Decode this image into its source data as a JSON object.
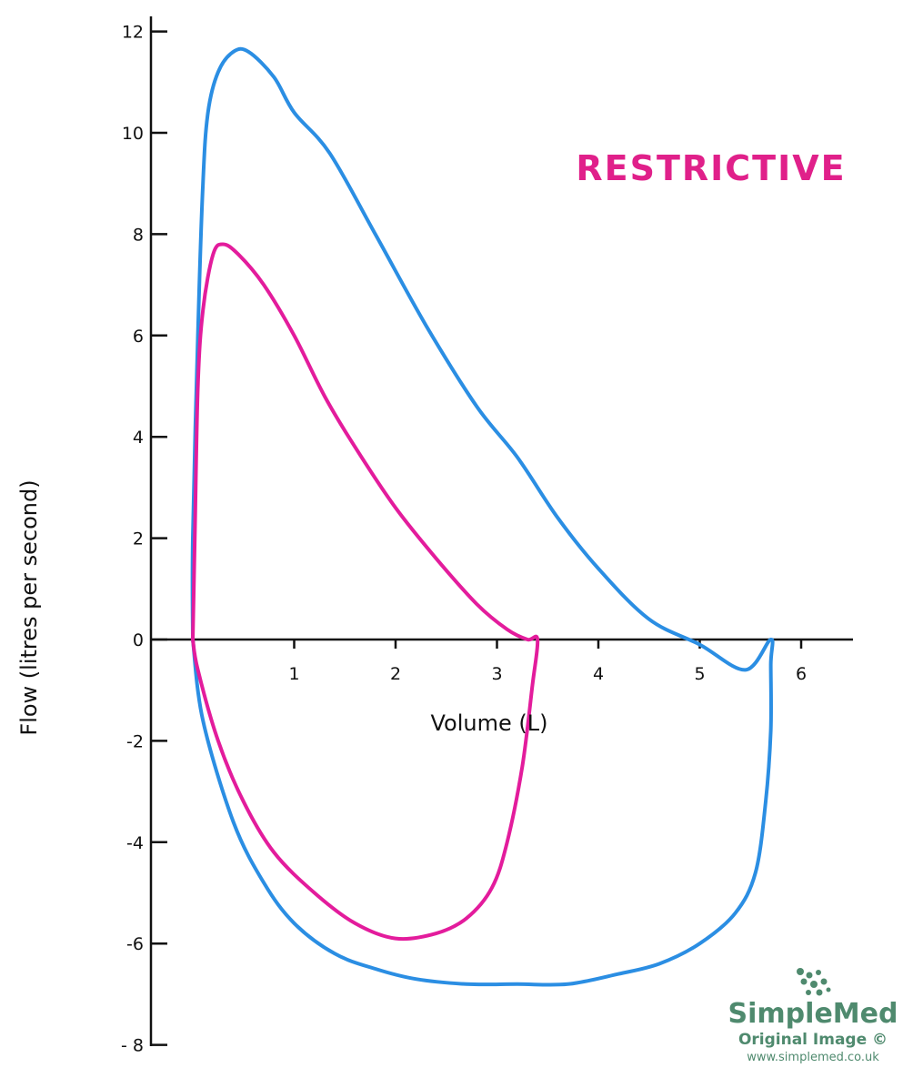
{
  "chart_data": {
    "type": "line",
    "annotation": "RESTRICTIVE",
    "xlabel": "Volume (L)",
    "ylabel": "Flow (litres per second)",
    "xlim": [
      0,
      6.5
    ],
    "ylim": [
      -8,
      12
    ],
    "x_ticks": [
      "1",
      "2",
      "3",
      "4",
      "5",
      "6"
    ],
    "y_ticks": [
      "12",
      "10",
      "8",
      "6",
      "4",
      "2",
      "0",
      "-2",
      "-4",
      "-6",
      "- 8"
    ],
    "x_tick_values": [
      1,
      2,
      3,
      4,
      5,
      6
    ],
    "y_tick_values": [
      12,
      10,
      8,
      6,
      4,
      2,
      0,
      -2,
      -4,
      -6,
      -8
    ],
    "grid": false,
    "series": [
      {
        "color": "#2b8ee3",
        "x": [
          0.0,
          0.0,
          0.05,
          0.1,
          0.15,
          0.25,
          0.4,
          0.55,
          0.8,
          1.0,
          1.35,
          1.8,
          2.3,
          2.8,
          3.2,
          3.6,
          4.0,
          4.5,
          5.0,
          5.45,
          5.7,
          5.7,
          5.7,
          5.65,
          5.55,
          5.35,
          5.0,
          4.6,
          4.2,
          3.7,
          3.2,
          2.7,
          2.2,
          1.8,
          1.4,
          1.0,
          0.7,
          0.4,
          0.1,
          0.0
        ],
        "y": [
          0.0,
          2.0,
          6.0,
          9.0,
          10.4,
          11.2,
          11.6,
          11.6,
          11.1,
          10.4,
          9.6,
          8.0,
          6.2,
          4.6,
          3.6,
          2.4,
          1.4,
          0.4,
          -0.1,
          -0.6,
          0.0,
          -0.5,
          -1.8,
          -3.2,
          -4.6,
          -5.4,
          -6.0,
          -6.4,
          -6.6,
          -6.8,
          -6.8,
          -6.8,
          -6.7,
          -6.5,
          -6.2,
          -5.6,
          -4.8,
          -3.6,
          -1.6,
          0.0
        ]
      },
      {
        "color": "#e31c9c",
        "x": [
          0.0,
          0.02,
          0.05,
          0.1,
          0.2,
          0.3,
          0.45,
          0.7,
          1.0,
          1.3,
          1.6,
          2.0,
          2.4,
          2.8,
          3.1,
          3.3,
          3.4,
          3.35,
          3.25,
          3.1,
          2.95,
          2.7,
          2.4,
          2.0,
          1.6,
          1.2,
          0.8,
          0.5,
          0.25,
          0.05,
          0.0
        ],
        "y": [
          0.0,
          2.0,
          5.0,
          6.5,
          7.6,
          7.8,
          7.6,
          7.0,
          6.0,
          4.8,
          3.8,
          2.6,
          1.6,
          0.7,
          0.2,
          0.0,
          0.0,
          -0.9,
          -2.5,
          -4.0,
          -4.9,
          -5.5,
          -5.8,
          -5.9,
          -5.6,
          -5.0,
          -4.2,
          -3.2,
          -2.0,
          -0.6,
          0.0
        ]
      }
    ]
  },
  "watermark": {
    "brand": "SimpleMed",
    "sub": "Original Image ©",
    "url": "www.simplemed.co.uk"
  },
  "colors": {
    "annotation": "#e0208a",
    "logo": "#4f8a6e"
  }
}
